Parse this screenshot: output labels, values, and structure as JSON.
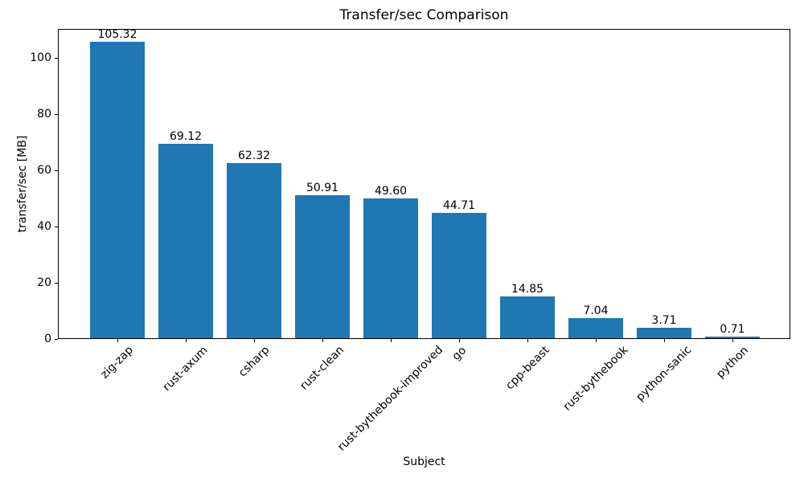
{
  "figure": {
    "background": "#ffffff"
  },
  "chart_data": {
    "type": "bar",
    "title": "Transfer/sec Comparison",
    "xlabel": "Subject",
    "ylabel": "transfer/sec [MB]",
    "categories": [
      "zig-zap",
      "rust-axum",
      "csharp",
      "rust-clean",
      "rust-bythebook-improved",
      "go",
      "cpp-beast",
      "rust-bythebook",
      "python-sanic",
      "python"
    ],
    "values": [
      105.32,
      69.12,
      62.32,
      50.91,
      49.6,
      44.71,
      14.85,
      7.04,
      3.71,
      0.71
    ],
    "value_labels": [
      "105.32",
      "69.12",
      "62.32",
      "50.91",
      "49.60",
      "44.71",
      "14.85",
      "7.04",
      "3.71",
      "0.71"
    ],
    "yticks": [
      0,
      20,
      40,
      60,
      80,
      100
    ],
    "ytick_labels": [
      "0",
      "20",
      "40",
      "60",
      "80",
      "100"
    ],
    "ylim": [
      0,
      110.3
    ],
    "xtick_rotation_deg": 45,
    "bar_color": "#1f77b4",
    "axis_color": "#000000",
    "text_color": "#000000",
    "grid": false,
    "legend": null
  }
}
